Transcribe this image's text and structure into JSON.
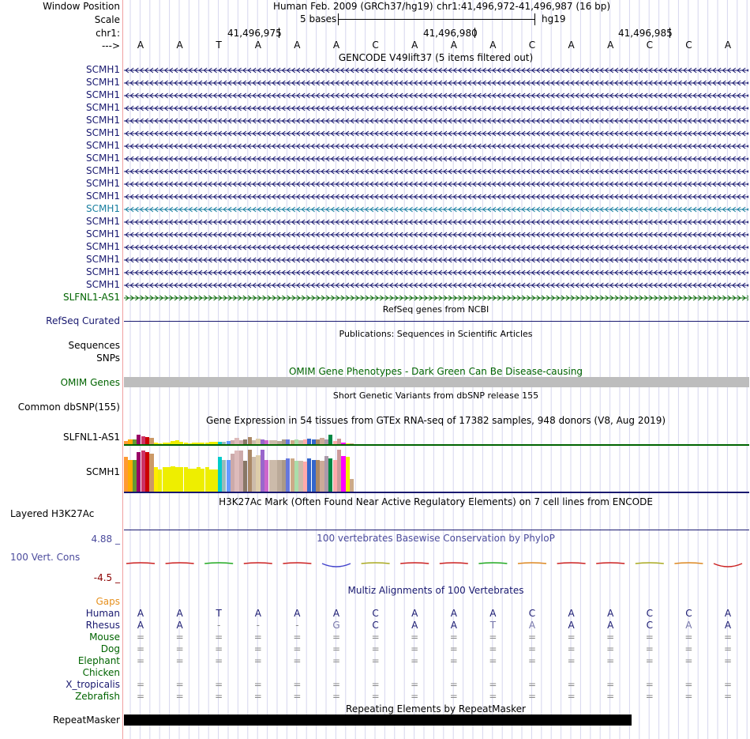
{
  "header": {
    "window_position_label": "Window Position",
    "assembly": "Human Feb. 2009 (GRCh37/hg19)",
    "position": "chr1:41,496,972-41,496,987 (16 bp)",
    "scale_label": "Scale",
    "scale_text": "5 bases",
    "scale_db": "hg19",
    "chrom_label": "chr1:",
    "coords": [
      "41,496,975",
      "41,496,980",
      "41,496,985"
    ],
    "strand_label": "--->",
    "bases": [
      "A",
      "A",
      "T",
      "A",
      "A",
      "A",
      "C",
      "A",
      "A",
      "A",
      "C",
      "A",
      "A",
      "C",
      "C",
      "A"
    ]
  },
  "gencode": {
    "title": "GENCODE V49lift37 (5 items filtered out)",
    "genes": [
      {
        "name": "SCMH1",
        "strand": "-",
        "color": "#191970"
      },
      {
        "name": "SCMH1",
        "strand": "-",
        "color": "#191970"
      },
      {
        "name": "SCMH1",
        "strand": "-",
        "color": "#191970"
      },
      {
        "name": "SCMH1",
        "strand": "-",
        "color": "#191970"
      },
      {
        "name": "SCMH1",
        "strand": "-",
        "color": "#191970"
      },
      {
        "name": "SCMH1",
        "strand": "-",
        "color": "#191970"
      },
      {
        "name": "SCMH1",
        "strand": "-",
        "color": "#191970"
      },
      {
        "name": "SCMH1",
        "strand": "-",
        "color": "#191970"
      },
      {
        "name": "SCMH1",
        "strand": "-",
        "color": "#191970"
      },
      {
        "name": "SCMH1",
        "strand": "-",
        "color": "#191970"
      },
      {
        "name": "SCMH1",
        "strand": "-",
        "color": "#191970"
      },
      {
        "name": "SCMH1",
        "strand": "-",
        "color": "#1a7fa0"
      },
      {
        "name": "SCMH1",
        "strand": "-",
        "color": "#191970"
      },
      {
        "name": "SCMH1",
        "strand": "-",
        "color": "#191970"
      },
      {
        "name": "SCMH1",
        "strand": "-",
        "color": "#191970"
      },
      {
        "name": "SCMH1",
        "strand": "-",
        "color": "#191970"
      },
      {
        "name": "SCMH1",
        "strand": "-",
        "color": "#191970"
      },
      {
        "name": "SCMH1",
        "strand": "-",
        "color": "#191970"
      },
      {
        "name": "SLFNL1-AS1",
        "strand": "+",
        "color": "#006400"
      }
    ]
  },
  "refseq": {
    "title": "RefSeq genes from NCBI",
    "label": "RefSeq Curated"
  },
  "publications": {
    "title": "Publications: Sequences in Scientific Articles",
    "label1": "Sequences",
    "label2": "SNPs"
  },
  "omim": {
    "title": "OMIM Gene Phenotypes - Dark Green Can Be Disease-causing",
    "label": "OMIM Genes"
  },
  "dbsnp": {
    "title": "Short Genetic Variants from dbSNP release 155",
    "label": "Common dbSNP(155)"
  },
  "gtex": {
    "title": "Gene Expression in 54 tissues from GTEx RNA-seq of 17382 samples, 948 donors (V8, Aug 2019)",
    "genes": [
      {
        "name": "SLFNL1-AS1",
        "values": [
          0.2,
          0.25,
          0.25,
          0.55,
          0.45,
          0.4,
          0.35,
          0.08,
          0.06,
          0.1,
          0.1,
          0.18,
          0.22,
          0.15,
          0.1,
          0.06,
          0.08,
          0.1,
          0.1,
          0.08,
          0.15,
          0.15,
          0.12,
          0.12,
          0.18,
          0.22,
          0.35,
          0.22,
          0.28,
          0.4,
          0.22,
          0.3,
          0.25,
          0.22,
          0.22,
          0.22,
          0.2,
          0.28,
          0.25,
          0.22,
          0.28,
          0.22,
          0.25,
          0.3,
          0.28,
          0.28,
          0.38,
          0.25,
          0.55,
          0.2,
          0.3,
          0.1,
          0.05,
          0.06
        ]
      },
      {
        "name": "SCMH1",
        "values": [
          0.78,
          0.72,
          0.72,
          0.9,
          0.92,
          0.9,
          0.85,
          0.55,
          0.5,
          0.55,
          0.55,
          0.58,
          0.55,
          0.55,
          0.55,
          0.52,
          0.52,
          0.55,
          0.52,
          0.55,
          0.5,
          0.5,
          0.78,
          0.72,
          0.72,
          0.85,
          0.92,
          0.92,
          0.7,
          0.95,
          0.78,
          0.82,
          0.95,
          0.72,
          0.72,
          0.72,
          0.72,
          0.72,
          0.75,
          0.75,
          0.7,
          0.7,
          0.68,
          0.75,
          0.72,
          0.72,
          0.7,
          0.8,
          0.75,
          0.72,
          0.95,
          0.8,
          0.78,
          0.28
        ]
      }
    ],
    "colors": [
      "#ff9933",
      "#ffaa00",
      "#669933",
      "#990066",
      "#cc3366",
      "#cc0000",
      "#cc9966",
      "#ffee00",
      "#eeee00",
      "#eeee00",
      "#eeee00",
      "#eeee00",
      "#eeee00",
      "#eeee00",
      "#eeee00",
      "#eeee00",
      "#eeee00",
      "#eeee00",
      "#eeee00",
      "#eeee00",
      "#eeee00",
      "#eeee00",
      "#00cccc",
      "#99bbbb",
      "#6699ff",
      "#ccaaaa",
      "#ddbbbb",
      "#ccaaaa",
      "#887766",
      "#aa8866",
      "#ccbbaa",
      "#ddccaa",
      "#9966cc",
      "#cc66cc",
      "#ccbbaa",
      "#ccbbaa",
      "#bbaa99",
      "#aa9988",
      "#6677dd",
      "#ccaa88",
      "#aaddaa",
      "#ccbbaa",
      "#ffaaaa",
      "#3366cc",
      "#3366cc",
      "#aa8866",
      "#ccaa99",
      "#aa99aa",
      "#008844",
      "#ffaaaa",
      "#cc9999",
      "#ff00ff",
      "#eeee00",
      "#ccaa88"
    ]
  },
  "h3k27ac": {
    "title": "H3K27Ac Mark (Often Found Near Active Regulatory Elements) on 7 cell lines from ENCODE",
    "label": "Layered H3K27Ac"
  },
  "conservation": {
    "title": "100 vertebrates Basewise Conservation by PhyloP",
    "label": "100 Vert. Cons",
    "max_label": "4.88 _",
    "min_label": "-4.5 _"
  },
  "multiz": {
    "title": "Multiz Alignments of 100 Vertebrates",
    "gaps_label": "Gaps",
    "species": [
      {
        "name": "Human",
        "color": "#191970",
        "bases": [
          "A",
          "A",
          "T",
          "A",
          "A",
          "A",
          "C",
          "A",
          "A",
          "A",
          "C",
          "A",
          "A",
          "C",
          "C",
          "A"
        ]
      },
      {
        "name": "Rhesus",
        "color": "#191970",
        "bases": [
          "A",
          "A",
          "-",
          "-",
          "-",
          "G",
          "C",
          "A",
          "A",
          "T",
          "A",
          "A",
          "A",
          "C",
          "A",
          "A"
        ]
      },
      {
        "name": "Mouse",
        "color": "#006400",
        "bases": [
          "=",
          "=",
          "=",
          "=",
          "=",
          "=",
          "=",
          "=",
          "=",
          "=",
          "=",
          "=",
          "=",
          "=",
          "=",
          "="
        ]
      },
      {
        "name": "Dog",
        "color": "#006400",
        "bases": [
          "=",
          "=",
          "=",
          "=",
          "=",
          "=",
          "=",
          "=",
          "=",
          "=",
          "=",
          "=",
          "=",
          "=",
          "=",
          "="
        ]
      },
      {
        "name": "Elephant",
        "color": "#006400",
        "bases": [
          "=",
          "=",
          "=",
          "=",
          "=",
          "=",
          "=",
          "=",
          "=",
          "=",
          "=",
          "=",
          "=",
          "=",
          "=",
          "="
        ]
      },
      {
        "name": "Chicken",
        "color": "#006400",
        "bases": [
          "",
          "",
          "",
          "",
          "",
          "",
          "",
          "",
          "",
          "",
          "",
          "",
          "",
          "",
          "",
          ""
        ]
      },
      {
        "name": "X_tropicalis",
        "color": "#191970",
        "bases": [
          "=",
          "=",
          "=",
          "=",
          "=",
          "=",
          "=",
          "=",
          "=",
          "=",
          "=",
          "=",
          "=",
          "=",
          "=",
          "="
        ]
      },
      {
        "name": "Zebrafish",
        "color": "#006400",
        "bases": [
          "=",
          "=",
          "=",
          "=",
          "=",
          "=",
          "=",
          "=",
          "=",
          "=",
          "=",
          "=",
          "=",
          "=",
          "=",
          "="
        ]
      }
    ]
  },
  "repeatmasker": {
    "title": "Repeating Elements by RepeatMasker",
    "label": "RepeatMasker"
  }
}
